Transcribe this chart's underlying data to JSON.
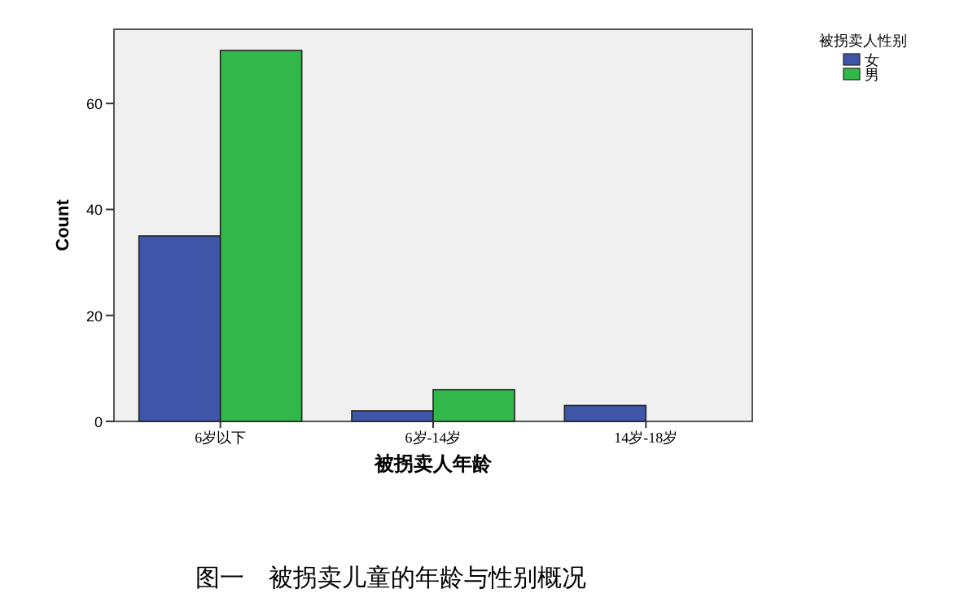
{
  "chart_data": {
    "type": "bar",
    "xlabel": "被拐卖人年龄",
    "ylabel": "Count",
    "legend_title": "被拐卖人性别",
    "categories": [
      "6岁以下",
      "6岁-14岁",
      "14岁-18岁"
    ],
    "series": [
      {
        "name": "女",
        "color": "#3f55a8",
        "values": [
          35,
          2,
          3
        ]
      },
      {
        "name": "男",
        "color": "#32b84a",
        "values": [
          70,
          6,
          0
        ]
      }
    ],
    "ylim": [
      0,
      74
    ],
    "yticks": [
      0,
      20,
      40,
      60
    ],
    "grid": false,
    "legend": "top right",
    "annotations": [
      "图一　被拐卖儿童的年龄与性别概况"
    ]
  }
}
